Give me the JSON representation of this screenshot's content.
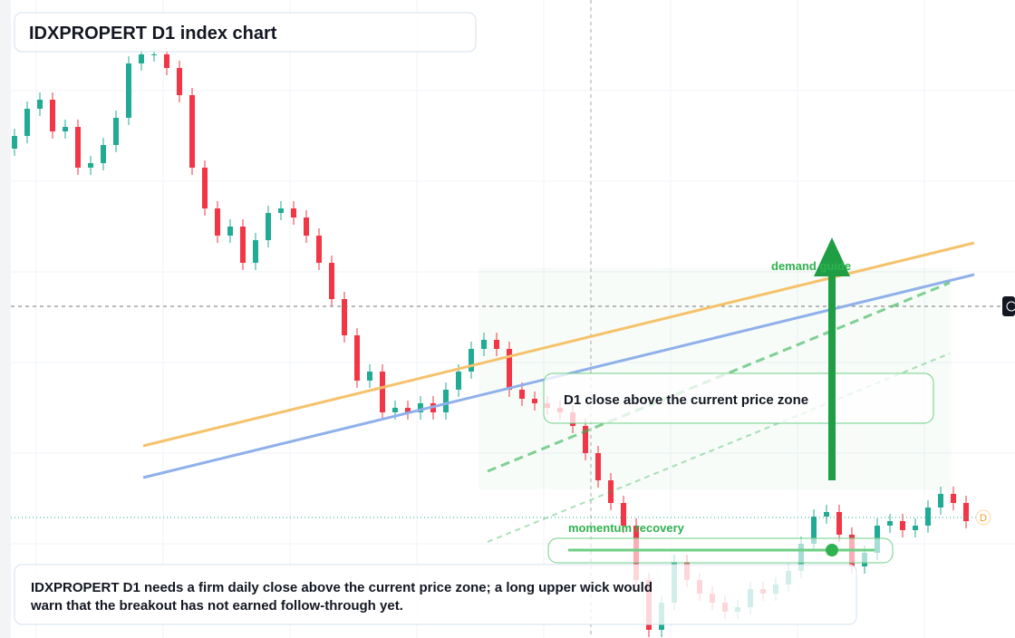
{
  "chart_data": {
    "type": "candlestick",
    "title": "IDXPROPERT D1 index chart",
    "annotations": {
      "demand": "demand guide",
      "momentum": "momentum recovery",
      "close_zone": "D1 close above the current price zone",
      "note": "IDXPROPERT D1 needs a firm daily close above the current price zone; a long upper wick would\nwarn that the breakout has not earned follow-through yet.",
      "price_tag": "D"
    },
    "up_color": "#22ab94",
    "down_color": "#f23645",
    "ylim": [
      0,
      704
    ],
    "open": [
      540,
      554,
      584,
      594,
      559,
      564,
      519,
      524,
      544,
      574,
      634,
      644,
      644,
      629,
      599,
      519,
      474,
      444,
      454,
      414,
      439,
      469,
      474,
      464,
      444,
      414,
      374,
      334,
      284,
      294,
      249,
      254,
      249,
      259,
      249,
      274,
      294,
      319,
      329,
      319,
      274,
      264,
      259,
      254,
      249,
      234,
      204,
      174,
      149,
      124,
      64,
      9,
      39,
      84,
      64,
      49,
      39,
      29,
      34,
      54,
      49,
      59,
      74,
      104,
      134,
      139,
      114,
      79,
      94,
      124,
      129,
      119,
      124,
      144,
      159,
      149
    ],
    "high": [
      562,
      592,
      602,
      602,
      572,
      572,
      532,
      552,
      582,
      642,
      652,
      652,
      652,
      637,
      607,
      527,
      482,
      462,
      462,
      447,
      477,
      482,
      482,
      472,
      452,
      422,
      382,
      342,
      302,
      302,
      262,
      262,
      267,
      267,
      282,
      302,
      327,
      337,
      337,
      327,
      282,
      272,
      267,
      262,
      257,
      242,
      212,
      182,
      157,
      132,
      72,
      47,
      92,
      92,
      72,
      57,
      47,
      42,
      62,
      62,
      67,
      82,
      112,
      142,
      147,
      147,
      122,
      102,
      132,
      137,
      137,
      132,
      152,
      167,
      167,
      157
    ],
    "low": [
      532,
      546,
      576,
      551,
      551,
      511,
      511,
      516,
      536,
      566,
      626,
      636,
      621,
      591,
      511,
      466,
      436,
      436,
      406,
      406,
      431,
      461,
      456,
      436,
      406,
      366,
      326,
      276,
      276,
      241,
      241,
      241,
      241,
      241,
      241,
      266,
      286,
      311,
      311,
      266,
      256,
      251,
      246,
      241,
      226,
      196,
      166,
      141,
      116,
      56,
      1,
      1,
      31,
      56,
      41,
      31,
      21,
      21,
      26,
      41,
      41,
      51,
      66,
      96,
      126,
      106,
      71,
      71,
      86,
      116,
      111,
      111,
      116,
      136,
      141,
      121
    ],
    "close": [
      554,
      584,
      594,
      559,
      564,
      519,
      524,
      544,
      574,
      634,
      644,
      644,
      629,
      599,
      519,
      474,
      444,
      454,
      414,
      439,
      469,
      474,
      464,
      444,
      414,
      374,
      334,
      284,
      294,
      249,
      254,
      249,
      259,
      249,
      274,
      294,
      319,
      329,
      319,
      274,
      264,
      259,
      254,
      249,
      234,
      204,
      174,
      149,
      124,
      64,
      9,
      39,
      84,
      64,
      49,
      39,
      29,
      34,
      54,
      49,
      59,
      74,
      104,
      134,
      139,
      114,
      79,
      94,
      124,
      129,
      119,
      124,
      144,
      159,
      149,
      129
    ]
  }
}
